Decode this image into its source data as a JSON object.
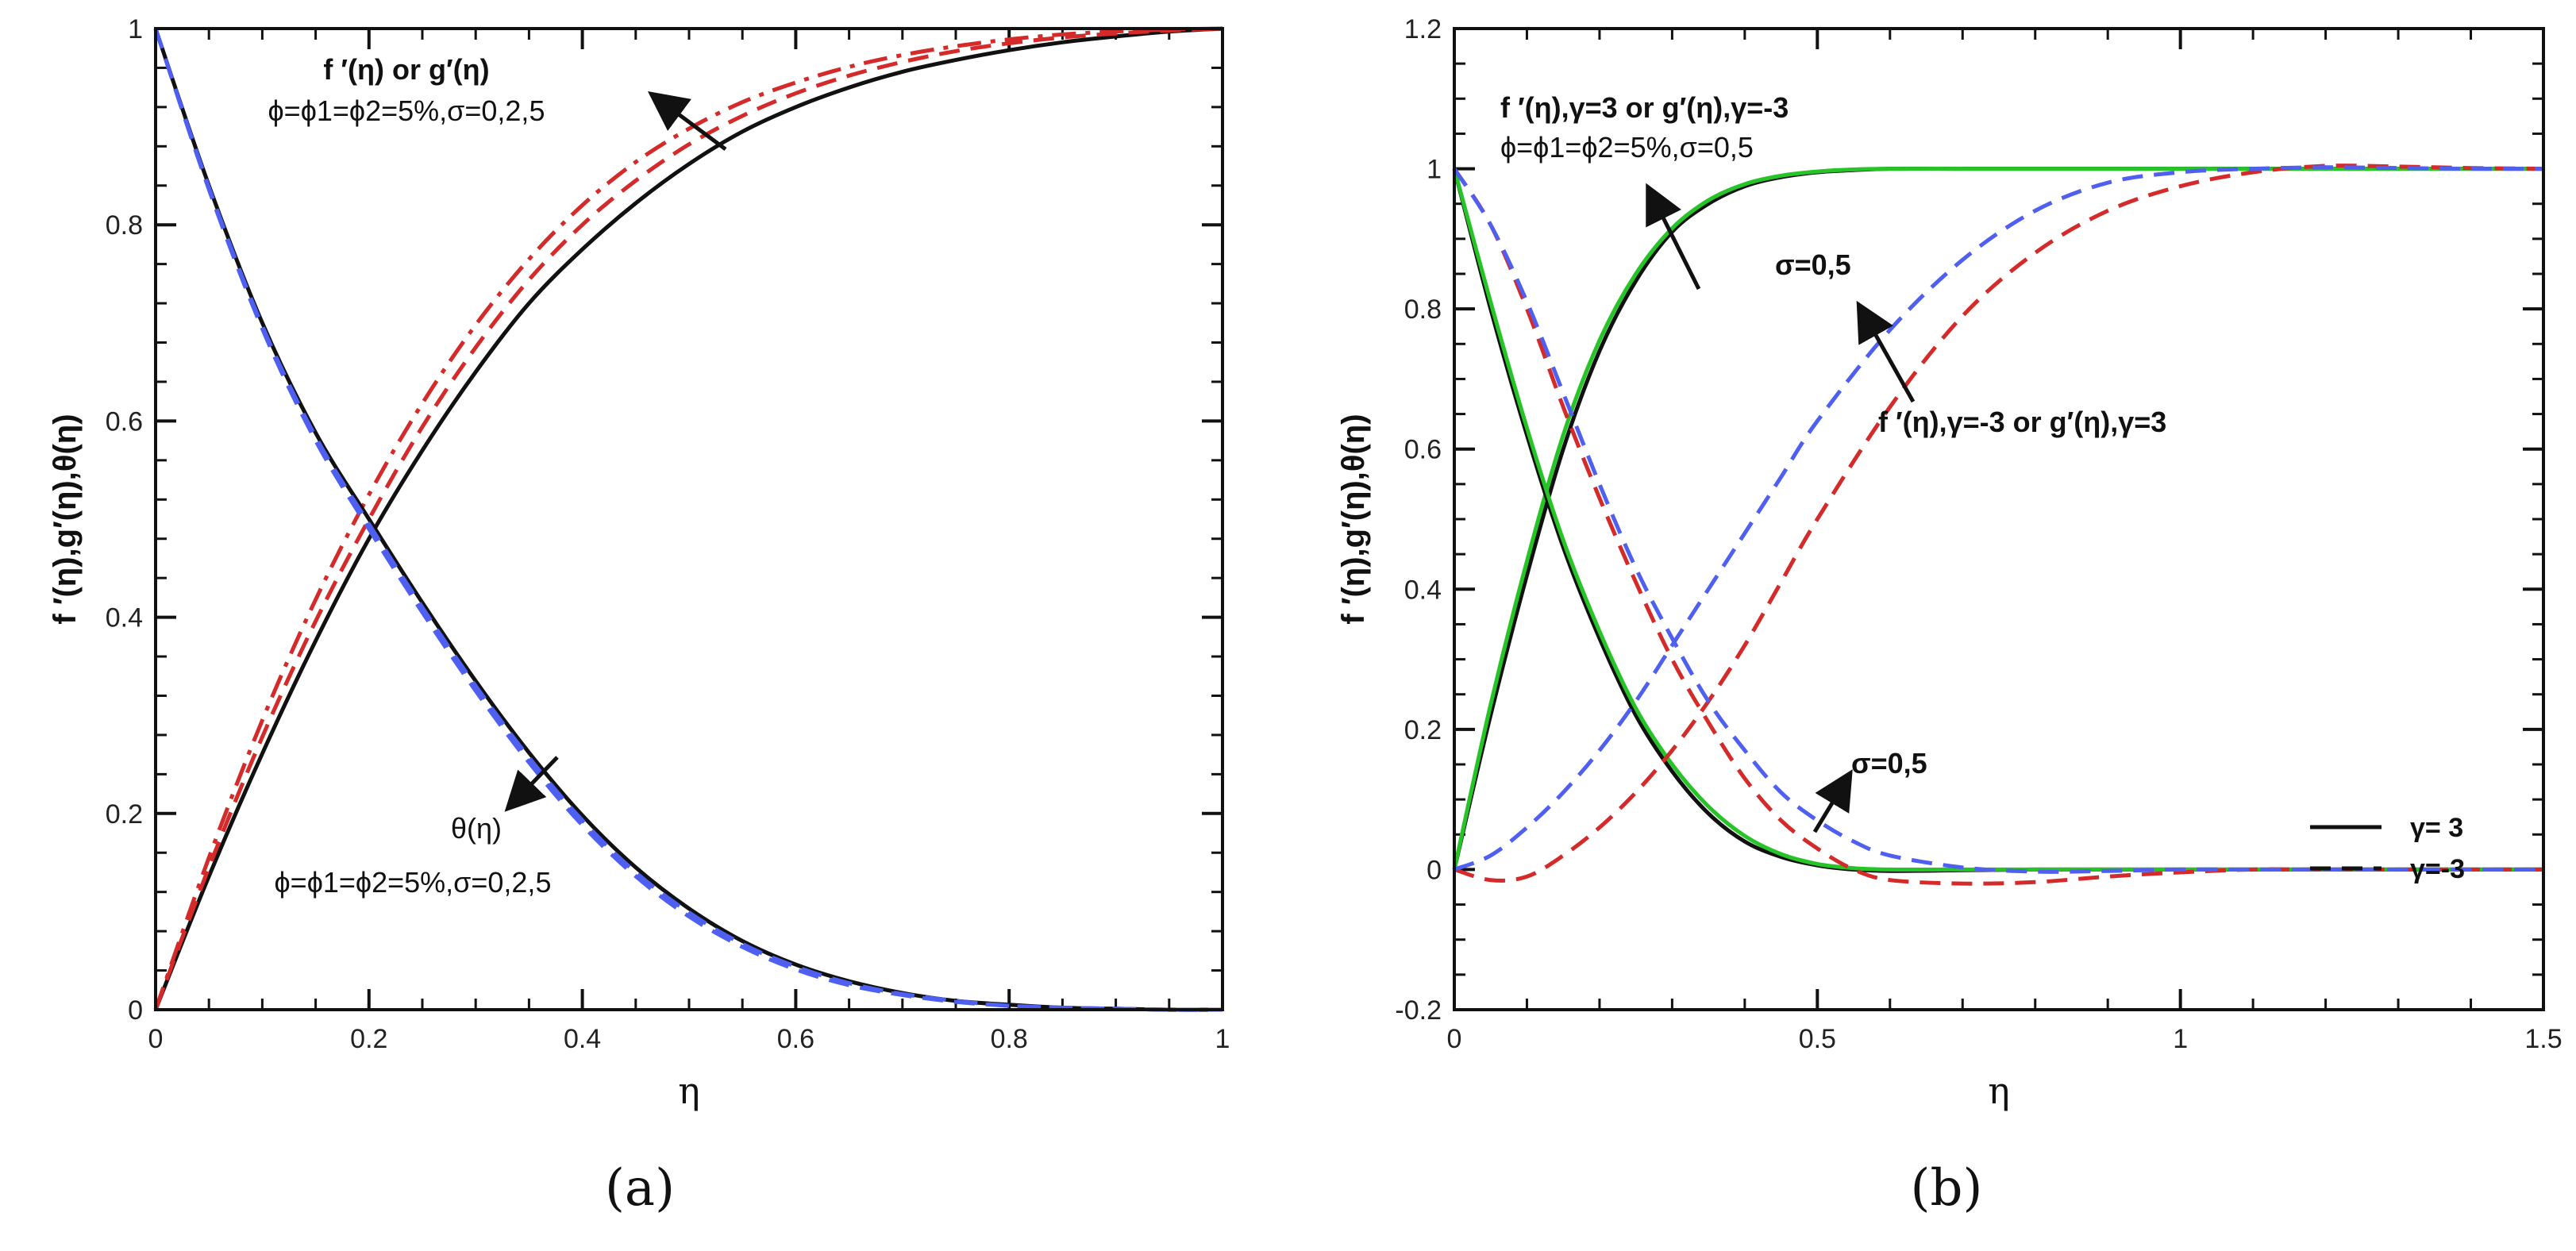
{
  "colors": {
    "black": "#111111",
    "red": "#d42a2a",
    "blue": "#4f5ff0",
    "green": "#27c427"
  },
  "chart_data": [
    {
      "panel": "a",
      "type": "line",
      "caption": "(a)",
      "xlabel": "η",
      "ylabel": "f ′(η),g′(η),θ(η)",
      "xlim": [
        0,
        1
      ],
      "ylim": [
        0,
        1
      ],
      "xticks": [
        "0",
        "0.2",
        "0.4",
        "0.6",
        "0.8",
        "1"
      ],
      "yticks": [
        "0",
        "0.2",
        "0.4",
        "0.6",
        "0.8",
        "1"
      ],
      "annotations": [
        {
          "text": "f ′(η) or g′(η)"
        },
        {
          "text": "ϕ=ϕ1=ϕ2=5%,σ=0,2,5"
        },
        {
          "text": "θ(η)"
        },
        {
          "text": "ϕ=ϕ1=ϕ2=5%,σ=0,2,5"
        }
      ],
      "series": [
        {
          "name": "f′(η) or g′(η), σ=0",
          "color": "black",
          "dash": "solid",
          "x": [
            0,
            0.05,
            0.1,
            0.15,
            0.2,
            0.25,
            0.3,
            0.35,
            0.4,
            0.45,
            0.5,
            0.55,
            0.6,
            0.65,
            0.7,
            0.75,
            0.8,
            0.85,
            0.9,
            0.95,
            1.0
          ],
          "y": [
            0,
            0.136,
            0.261,
            0.376,
            0.48,
            0.57,
            0.65,
            0.72,
            0.775,
            0.822,
            0.862,
            0.895,
            0.92,
            0.94,
            0.956,
            0.968,
            0.978,
            0.986,
            0.992,
            0.997,
            1.0
          ]
        },
        {
          "name": "f′(η) or g′(η), σ=2",
          "color": "red",
          "dash": "dashed",
          "x": [
            0,
            0.05,
            0.1,
            0.15,
            0.2,
            0.25,
            0.3,
            0.35,
            0.4,
            0.45,
            0.5,
            0.55,
            0.6,
            0.65,
            0.7,
            0.75,
            0.8,
            0.85,
            0.9,
            0.95,
            1.0
          ],
          "y": [
            0,
            0.145,
            0.278,
            0.396,
            0.5,
            0.594,
            0.675,
            0.744,
            0.8,
            0.845,
            0.882,
            0.911,
            0.934,
            0.952,
            0.966,
            0.977,
            0.985,
            0.991,
            0.995,
            0.998,
            1.0
          ]
        },
        {
          "name": "f′(η) or g′(η), σ=5",
          "color": "red",
          "dash": "dashdot",
          "x": [
            0,
            0.05,
            0.1,
            0.15,
            0.2,
            0.25,
            0.3,
            0.35,
            0.4,
            0.45,
            0.5,
            0.55,
            0.6,
            0.65,
            0.7,
            0.75,
            0.8,
            0.85,
            0.9,
            0.95,
            1.0
          ],
          "y": [
            0,
            0.155,
            0.295,
            0.418,
            0.525,
            0.618,
            0.698,
            0.765,
            0.82,
            0.864,
            0.898,
            0.925,
            0.945,
            0.961,
            0.973,
            0.982,
            0.989,
            0.994,
            0.997,
            0.999,
            1.0
          ]
        },
        {
          "name": "θ(η), σ=0",
          "color": "black",
          "dash": "solid",
          "x": [
            0,
            0.05,
            0.1,
            0.15,
            0.2,
            0.25,
            0.3,
            0.35,
            0.4,
            0.45,
            0.5,
            0.55,
            0.6,
            0.65,
            0.7,
            0.75,
            0.8,
            0.85,
            0.9,
            0.95,
            1.0
          ],
          "y": [
            1.0,
            0.84,
            0.7,
            0.588,
            0.5,
            0.415,
            0.335,
            0.262,
            0.198,
            0.145,
            0.103,
            0.07,
            0.046,
            0.029,
            0.017,
            0.009,
            0.005,
            0.002,
            0.001,
            0.0,
            0.0
          ]
        },
        {
          "name": "θ(η), σ=2",
          "color": "blue",
          "dash": "dashed",
          "x": [
            0,
            0.05,
            0.1,
            0.15,
            0.2,
            0.25,
            0.3,
            0.35,
            0.4,
            0.45,
            0.5,
            0.55,
            0.6,
            0.65,
            0.7,
            0.75,
            0.8,
            0.85,
            0.9,
            0.95,
            1.0
          ],
          "y": [
            1.0,
            0.838,
            0.697,
            0.584,
            0.495,
            0.41,
            0.33,
            0.257,
            0.193,
            0.14,
            0.099,
            0.067,
            0.044,
            0.027,
            0.016,
            0.009,
            0.004,
            0.002,
            0.001,
            0.0,
            0.0
          ]
        },
        {
          "name": "θ(η), σ=5",
          "color": "blue",
          "dash": "dashed",
          "x": [
            0,
            0.05,
            0.1,
            0.15,
            0.2,
            0.25,
            0.3,
            0.35,
            0.4,
            0.45,
            0.5,
            0.55,
            0.6,
            0.65,
            0.7,
            0.75,
            0.8,
            0.85,
            0.9,
            0.95,
            1.0
          ],
          "y": [
            1.0,
            0.836,
            0.694,
            0.58,
            0.49,
            0.405,
            0.325,
            0.252,
            0.188,
            0.136,
            0.095,
            0.064,
            0.041,
            0.025,
            0.015,
            0.008,
            0.004,
            0.002,
            0.001,
            0.0,
            0.0
          ]
        }
      ]
    },
    {
      "panel": "b",
      "type": "line",
      "caption": "(b)",
      "xlabel": "η",
      "ylabel": "f ′(η),g′(η),θ(η)",
      "xlim": [
        0,
        1.5
      ],
      "ylim": [
        -0.2,
        1.2
      ],
      "xticks": [
        "0",
        "0.5",
        "1",
        "1.5"
      ],
      "yticks": [
        "-0.2",
        "0",
        "0.2",
        "0.4",
        "0.6",
        "0.8",
        "1",
        "1.2"
      ],
      "legend": {
        "placement": "lower-right",
        "entries": [
          {
            "label": "γ= 3",
            "dash": "solid"
          },
          {
            "label": "γ=-3",
            "dash": "dashed"
          }
        ]
      },
      "annotations": [
        {
          "text": "f ′(η),γ=3 or g′(η),γ=-3"
        },
        {
          "text": "ϕ=ϕ1=ϕ2=5%,σ=0,5"
        },
        {
          "text": "σ=0,5"
        },
        {
          "text": "f ′(η),γ=-3 or g′(η),γ=3"
        },
        {
          "text": "σ=0,5"
        }
      ],
      "series": [
        {
          "name": "f′(η),γ=3 or g′(η),γ=-3, σ=0",
          "color": "black",
          "dash": "solid",
          "x": [
            0,
            0.05,
            0.1,
            0.15,
            0.2,
            0.25,
            0.3,
            0.35,
            0.4,
            0.45,
            0.5,
            0.55,
            0.6,
            0.7,
            0.8,
            1.0,
            1.2,
            1.5
          ],
          "y": [
            0,
            0.22,
            0.42,
            0.6,
            0.74,
            0.84,
            0.91,
            0.95,
            0.975,
            0.988,
            0.995,
            0.998,
            1.0,
            1.0,
            1.0,
            1.0,
            1.0,
            1.0
          ]
        },
        {
          "name": "f′(η),γ=3 or g′(η),γ=-3, σ=5",
          "color": "green",
          "dash": "solid",
          "x": [
            0,
            0.05,
            0.1,
            0.15,
            0.2,
            0.25,
            0.3,
            0.35,
            0.4,
            0.45,
            0.5,
            0.55,
            0.6,
            0.7,
            0.8,
            1.0,
            1.2,
            1.5
          ],
          "y": [
            0,
            0.235,
            0.44,
            0.62,
            0.755,
            0.85,
            0.915,
            0.955,
            0.978,
            0.99,
            0.996,
            0.999,
            1.0,
            1.0,
            1.0,
            1.0,
            1.0,
            1.0
          ]
        },
        {
          "name": "θ(η),γ=3, σ=0",
          "color": "black",
          "dash": "solid",
          "x": [
            0,
            0.05,
            0.1,
            0.15,
            0.2,
            0.25,
            0.3,
            0.35,
            0.4,
            0.45,
            0.5,
            0.55,
            0.6,
            0.7,
            0.8,
            1.0,
            1.2,
            1.5
          ],
          "y": [
            1.0,
            0.8,
            0.62,
            0.46,
            0.33,
            0.22,
            0.14,
            0.08,
            0.04,
            0.018,
            0.006,
            0.0,
            -0.002,
            -0.001,
            0.0,
            0.0,
            0.0,
            0.0
          ]
        },
        {
          "name": "θ(η),γ=3, σ=5",
          "color": "green",
          "dash": "solid",
          "x": [
            0,
            0.05,
            0.1,
            0.15,
            0.2,
            0.25,
            0.3,
            0.35,
            0.4,
            0.45,
            0.5,
            0.55,
            0.6,
            0.7,
            0.8,
            1.0,
            1.2,
            1.5
          ],
          "y": [
            1.0,
            0.81,
            0.63,
            0.47,
            0.34,
            0.23,
            0.15,
            0.09,
            0.048,
            0.022,
            0.008,
            0.002,
            0.0,
            0.0,
            0.0,
            0.0,
            0.0,
            0.0
          ]
        },
        {
          "name": "f′(η),γ=-3 or g′(η),γ=3, σ=0",
          "color": "red",
          "dash": "dashed",
          "x": [
            0,
            0.05,
            0.1,
            0.15,
            0.2,
            0.25,
            0.3,
            0.35,
            0.4,
            0.45,
            0.5,
            0.6,
            0.7,
            0.8,
            0.9,
            1.0,
            1.1,
            1.2,
            1.3,
            1.4,
            1.5
          ],
          "y": [
            0,
            -0.015,
            -0.01,
            0.02,
            0.06,
            0.11,
            0.17,
            0.24,
            0.32,
            0.41,
            0.5,
            0.66,
            0.79,
            0.88,
            0.94,
            0.975,
            0.995,
            1.004,
            1.003,
            1.001,
            1.0
          ]
        },
        {
          "name": "f′(η),γ=-3 or g′(η),γ=3, σ=5",
          "color": "blue",
          "dash": "dashed",
          "x": [
            0,
            0.05,
            0.1,
            0.15,
            0.2,
            0.25,
            0.3,
            0.35,
            0.4,
            0.45,
            0.5,
            0.6,
            0.7,
            0.8,
            0.9,
            1.0,
            1.1,
            1.2,
            1.3,
            1.4,
            1.5
          ],
          "y": [
            0,
            0.02,
            0.06,
            0.11,
            0.17,
            0.24,
            0.32,
            0.4,
            0.48,
            0.56,
            0.64,
            0.77,
            0.87,
            0.94,
            0.98,
            0.995,
            1.0,
            1.002,
            1.001,
            1.0,
            1.0
          ]
        },
        {
          "name": "θ(η),γ=-3, σ=0",
          "color": "red",
          "dash": "dashed",
          "x": [
            0,
            0.05,
            0.1,
            0.15,
            0.2,
            0.25,
            0.3,
            0.35,
            0.4,
            0.45,
            0.5,
            0.55,
            0.6,
            0.7,
            0.8,
            0.9,
            1.0,
            1.1,
            1.2,
            1.5
          ],
          "y": [
            1.0,
            0.92,
            0.8,
            0.66,
            0.53,
            0.41,
            0.3,
            0.21,
            0.13,
            0.07,
            0.03,
            0.0,
            -0.015,
            -0.02,
            -0.018,
            -0.01,
            -0.004,
            0.0,
            0.0,
            0.0
          ]
        },
        {
          "name": "θ(η),γ=-3, σ=5",
          "color": "blue",
          "dash": "dashed",
          "x": [
            0,
            0.05,
            0.1,
            0.15,
            0.2,
            0.25,
            0.3,
            0.35,
            0.4,
            0.45,
            0.5,
            0.55,
            0.6,
            0.7,
            0.8,
            0.9,
            1.0,
            1.1,
            1.2,
            1.5
          ],
          "y": [
            1.0,
            0.92,
            0.81,
            0.68,
            0.55,
            0.43,
            0.33,
            0.24,
            0.17,
            0.11,
            0.07,
            0.04,
            0.02,
            0.003,
            -0.003,
            -0.002,
            0.0,
            0.0,
            0.0,
            0.0
          ]
        }
      ]
    }
  ]
}
